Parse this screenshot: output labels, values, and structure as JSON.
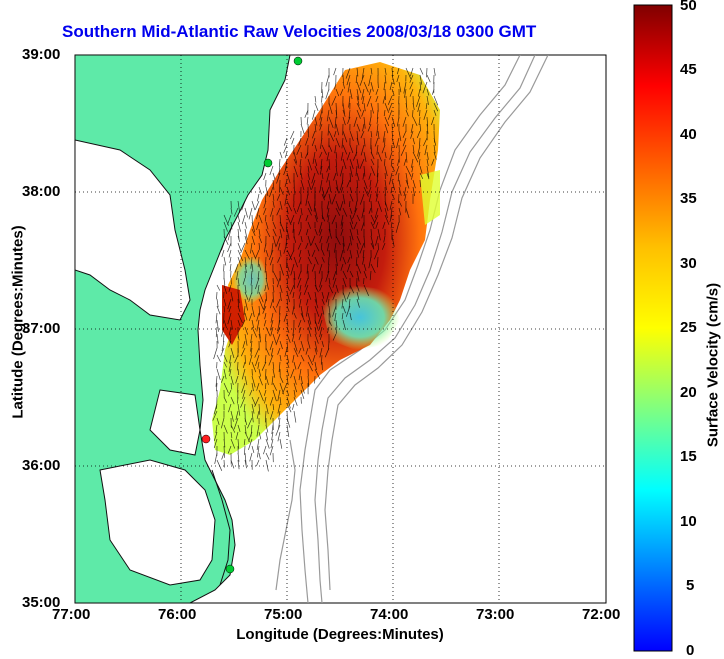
{
  "title": "Southern Mid-Atlantic Raw Velocities 2008/03/18 0300 GMT",
  "xlabel": "Longitude (Degrees:Minutes)",
  "ylabel": "Latitude (Degrees:Minutes)",
  "colorbar_label": "Surface Velocity (cm/s)",
  "x_ticks": [
    "77:00",
    "76:00",
    "75:00",
    "74:00",
    "73:00",
    "72:00"
  ],
  "y_ticks": [
    "39:00",
    "38:00",
    "37:00",
    "36:00",
    "35:00"
  ],
  "colorbar_ticks": [
    "50",
    "45",
    "40",
    "35",
    "30",
    "25",
    "20",
    "15",
    "10",
    "5",
    "0"
  ],
  "colors": {
    "land": "#5eeaa8",
    "title": "#0000ee",
    "bathymetry": "#9a9a9a",
    "station": "#00cc33",
    "station_alt": "#ff2020"
  },
  "chart_data": {
    "type": "map",
    "xlim": [
      -77,
      -72
    ],
    "ylim": [
      35,
      39
    ],
    "colorbar": {
      "min": 0,
      "max": 50,
      "units": "cm/s",
      "colormap": "jet"
    },
    "grid": true,
    "stations": [
      {
        "lon": -75.1,
        "lat": 38.98,
        "color": "green"
      },
      {
        "lon": -75.15,
        "lat": 38.24,
        "color": "green"
      },
      {
        "lon": -75.75,
        "lat": 36.18,
        "color": "red"
      },
      {
        "lon": -75.48,
        "lat": 35.26,
        "color": "green"
      }
    ]
  }
}
